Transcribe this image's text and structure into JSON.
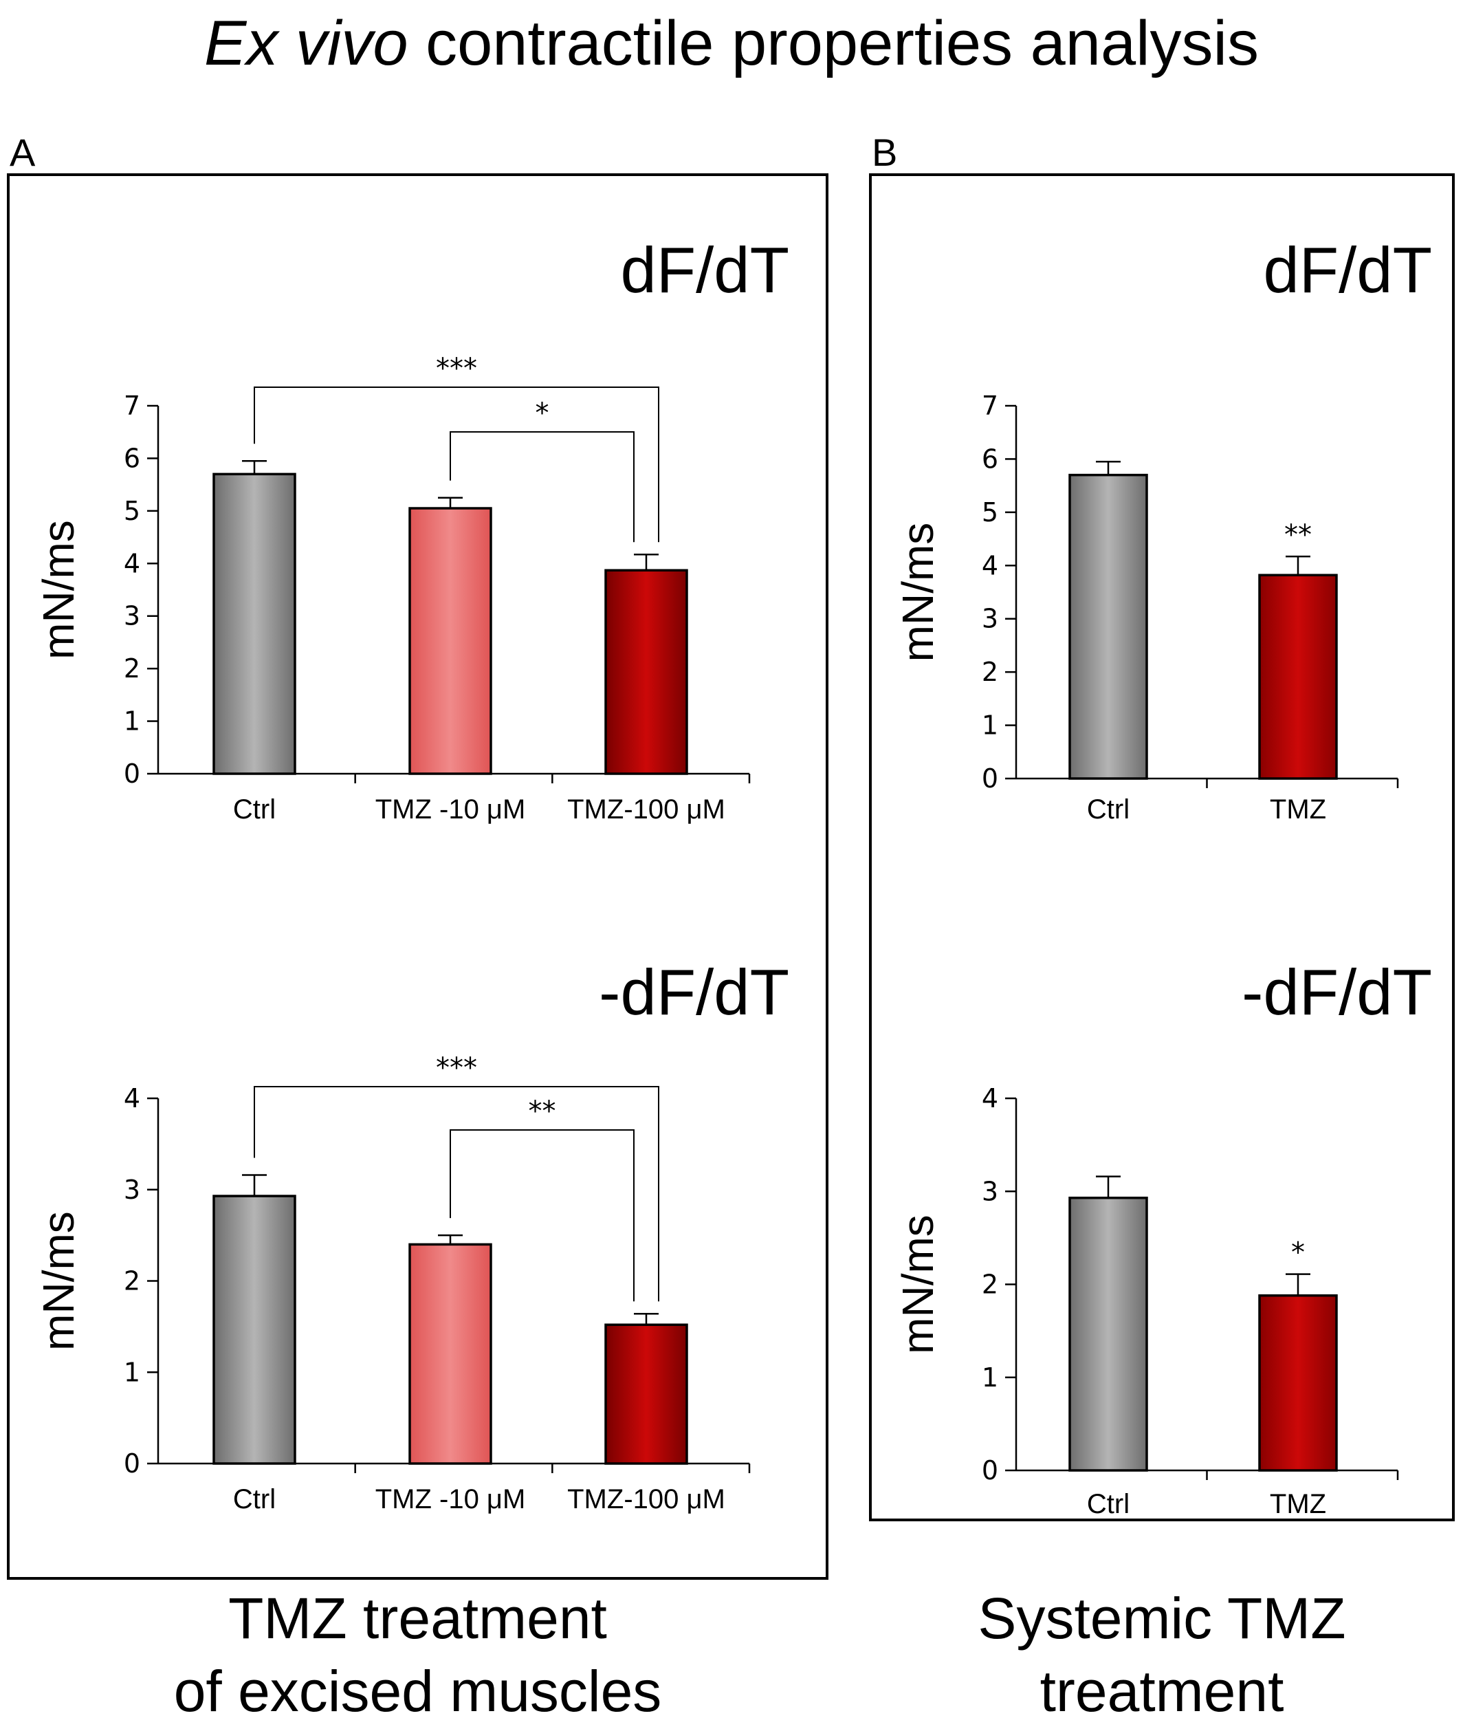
{
  "title": {
    "prefix": "Ex vivo",
    "rest": " contractile properties analysis"
  },
  "panels": [
    {
      "letter": "A",
      "caption_lines": [
        "TMZ treatment",
        "of excised muscles"
      ]
    },
    {
      "letter": "B",
      "caption_lines": [
        "Systemic TMZ",
        "treatment"
      ]
    }
  ],
  "colors": {
    "ctrl": "#b4b4b4",
    "tmz10": "#f08a8a",
    "tmz100": "#cc0808",
    "tmz": "#cc0808"
  },
  "chart_data": [
    {
      "type": "bar",
      "panel": "A",
      "title": "dF/dT",
      "ylabel": "mN/ms",
      "ylim": [
        0,
        7
      ],
      "yticks": [
        0,
        1,
        2,
        3,
        4,
        5,
        6,
        7
      ],
      "categories": [
        "Ctrl",
        "TMZ -10 μM",
        "TMZ-100 μM"
      ],
      "values": [
        5.7,
        5.05,
        3.87
      ],
      "errors": [
        0.25,
        0.2,
        0.3
      ],
      "fills": [
        "ctrl",
        "tmz10",
        "tmz100"
      ],
      "brackets": [
        {
          "from": 0,
          "to": 2,
          "label": "***"
        },
        {
          "from": 1,
          "to": 2,
          "label": "*"
        }
      ],
      "stars": [
        "",
        "",
        ""
      ]
    },
    {
      "type": "bar",
      "panel": "A",
      "title": "-dF/dT",
      "ylabel": "mN/ms",
      "ylim": [
        0,
        4
      ],
      "yticks": [
        0,
        1,
        2,
        3,
        4
      ],
      "categories": [
        "Ctrl",
        "TMZ -10 μM",
        "TMZ-100 μM"
      ],
      "values": [
        2.93,
        2.4,
        1.52
      ],
      "errors": [
        0.23,
        0.1,
        0.12
      ],
      "fills": [
        "ctrl",
        "tmz10",
        "tmz100"
      ],
      "brackets": [
        {
          "from": 0,
          "to": 2,
          "label": "***"
        },
        {
          "from": 1,
          "to": 2,
          "label": "**"
        }
      ],
      "stars": [
        "",
        "",
        ""
      ]
    },
    {
      "type": "bar",
      "panel": "B",
      "title": "dF/dT",
      "ylabel": "mN/ms",
      "ylim": [
        0,
        7
      ],
      "yticks": [
        0,
        1,
        2,
        3,
        4,
        5,
        6,
        7
      ],
      "categories": [
        "Ctrl",
        "TMZ"
      ],
      "values": [
        5.7,
        3.82
      ],
      "errors": [
        0.25,
        0.35
      ],
      "fills": [
        "ctrl",
        "tmz"
      ],
      "brackets": [],
      "stars": [
        "",
        "**"
      ]
    },
    {
      "type": "bar",
      "panel": "B",
      "title": "-dF/dT",
      "ylabel": "mN/ms",
      "ylim": [
        0,
        4
      ],
      "yticks": [
        0,
        1,
        2,
        3,
        4
      ],
      "categories": [
        "Ctrl",
        "TMZ"
      ],
      "values": [
        2.93,
        1.88
      ],
      "errors": [
        0.23,
        0.23
      ],
      "fills": [
        "ctrl",
        "tmz"
      ],
      "brackets": [],
      "stars": [
        "",
        "*"
      ]
    }
  ]
}
